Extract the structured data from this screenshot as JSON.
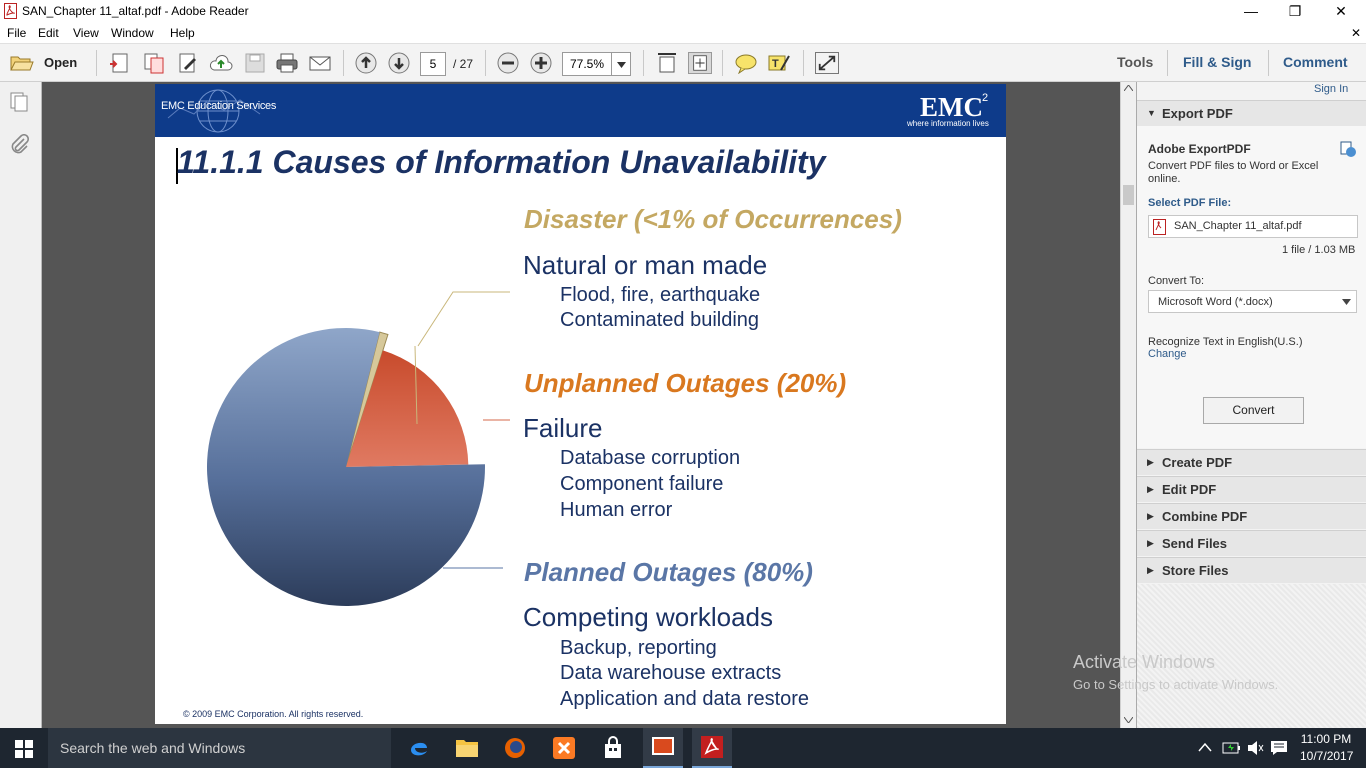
{
  "window": {
    "title": "SAN_Chapter 11_altaf.pdf - Adobe Reader",
    "minimize": "—",
    "maximize": "❐",
    "close": "✕"
  },
  "menu": [
    "File",
    "Edit",
    "View",
    "Window",
    "Help"
  ],
  "toolbar": {
    "open_label": "Open",
    "page_current": "5",
    "page_total": "/ 27",
    "zoom": "77.5%",
    "tools_label": "Tools",
    "fill_sign_label": "Fill & Sign",
    "comment_label": "Comment"
  },
  "slide": {
    "banner_left": "EMC Education Services",
    "logo_main": "EMC",
    "logo_super": "2",
    "logo_tag": "where information lives",
    "title": "11.1.1 Causes of Information Unavailability",
    "disaster_header": "Disaster (<1% of Occurrences)",
    "disaster_l1": "Natural or man made",
    "disaster_items": [
      "Flood, fire, earthquake",
      "Contaminated building"
    ],
    "unplanned_header": "Unplanned Outages (20%)",
    "unplanned_l1": "Failure",
    "unplanned_items": [
      "Database corruption",
      "Component failure",
      "Human error"
    ],
    "planned_header": "Planned Outages (80%)",
    "planned_l1": "Competing workloads",
    "planned_items": [
      "Backup, reporting",
      "Data warehouse extracts",
      "Application and data restore"
    ],
    "copyright": "© 2009 EMC Corporation. All rights reserved.",
    "colors": {
      "disaster": "#c4a862",
      "unplanned": "#d9781f",
      "planned": "#5a76a6",
      "text": "#1b3264",
      "banner": "#0e3b8a"
    }
  },
  "pie": {
    "slices": [
      {
        "name": "Disaster",
        "value": 1,
        "color": "#d6c89a"
      },
      {
        "name": "Unplanned Outages",
        "value": 20,
        "color": "#d55a3c"
      },
      {
        "name": "Planned Outages",
        "value": 80,
        "color": "#3d5680"
      }
    ]
  },
  "rightpane": {
    "sign_in": "Sign In",
    "export_header": "Export PDF",
    "export_title": "Adobe ExportPDF",
    "export_desc": "Convert PDF files to Word or Excel online.",
    "select_label": "Select PDF File:",
    "file_name": "SAN_Chapter 11_altaf.pdf",
    "file_info": "1 file / 1.03 MB",
    "convert_to_label": "Convert To:",
    "convert_to_value": "Microsoft Word (*.docx)",
    "recognize_text": "Recognize Text in English(U.S.)",
    "change_link": "Change",
    "convert_button": "Convert",
    "sections": [
      "Create PDF",
      "Edit PDF",
      "Combine PDF",
      "Send Files",
      "Store Files"
    ]
  },
  "watermark": {
    "line1": "Activate Windows",
    "line2": "Go to Settings to activate Windows."
  },
  "taskbar": {
    "search_placeholder": "Search the web and Windows",
    "time": "11:00 PM",
    "date": "10/7/2017"
  }
}
